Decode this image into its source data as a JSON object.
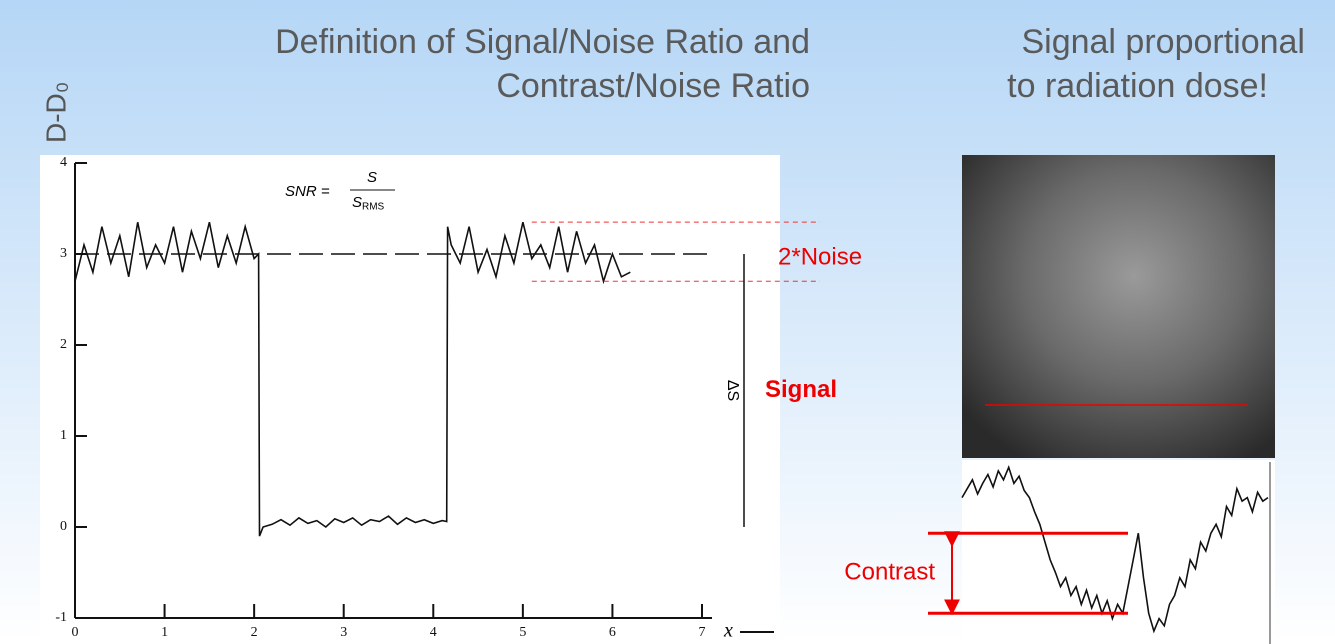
{
  "slide": {
    "title_left": [
      "Definition of Signal/Noise Ratio and",
      "Contrast/Noise Ratio"
    ],
    "title_right": [
      "Signal proportional",
      "to radiation dose!"
    ]
  },
  "chart_data": [
    {
      "type": "line",
      "ylabel": "D-D₀",
      "xlabel": "x",
      "color": "#111111",
      "xlim": [
        0,
        7
      ],
      "ylim": [
        -1,
        4
      ],
      "xticks": [
        0,
        1,
        2,
        3,
        4,
        5,
        6,
        7
      ],
      "yticks": [
        -1,
        0,
        1,
        2,
        3,
        4
      ],
      "x": [
        0,
        0.1,
        0.2,
        0.3,
        0.4,
        0.5,
        0.6,
        0.7,
        0.8,
        0.9,
        1,
        1.1,
        1.2,
        1.3,
        1.4,
        1.5,
        1.6,
        1.7,
        1.8,
        1.9,
        2,
        2.05,
        2.06,
        2.1,
        2.2,
        2.3,
        2.4,
        2.5,
        2.6,
        2.7,
        2.8,
        2.9,
        3,
        3.1,
        3.2,
        3.3,
        3.4,
        3.5,
        3.6,
        3.7,
        3.8,
        3.9,
        4,
        4.1,
        4.15,
        4.16,
        4.2,
        4.3,
        4.4,
        4.5,
        4.6,
        4.7,
        4.8,
        4.9,
        5,
        5.1,
        5.2,
        5.3,
        5.4,
        5.5,
        5.6,
        5.7,
        5.8,
        5.9,
        6,
        6.1,
        6.2
      ],
      "values": [
        2.7,
        3.1,
        2.8,
        3.3,
        2.9,
        3.2,
        2.75,
        3.35,
        2.85,
        3.1,
        2.9,
        3.3,
        2.8,
        3.25,
        2.95,
        3.35,
        2.85,
        3.2,
        2.9,
        3.3,
        2.95,
        3.0,
        -0.1,
        0.0,
        0.03,
        0.08,
        0.02,
        0.1,
        0.04,
        0.07,
        0.0,
        0.09,
        0.05,
        0.1,
        0.02,
        0.08,
        0.06,
        0.12,
        0.03,
        0.1,
        0.05,
        0.08,
        0.04,
        0.07,
        0.06,
        3.3,
        3.1,
        2.9,
        3.3,
        2.8,
        3.05,
        2.75,
        3.2,
        2.9,
        3.35,
        2.95,
        3.1,
        2.85,
        3.3,
        2.8,
        3.25,
        2.9,
        3.1,
        2.7,
        3.0,
        2.75,
        2.8
      ],
      "baseline": 3,
      "noise_band": [
        2.7,
        3.35
      ],
      "formula": {
        "lhs": "SNR =",
        "numerator": "S",
        "denominator": "S",
        "denominator_sub": "RMS"
      },
      "annotations": {
        "noise": "2*Noise",
        "signal": "Signal",
        "delta": "ΔS"
      }
    },
    {
      "type": "line",
      "color": "#111111",
      "ylim": [
        0,
        1
      ],
      "values": [
        0.8,
        0.85,
        0.9,
        0.82,
        0.88,
        0.93,
        0.86,
        0.95,
        0.9,
        0.97,
        0.88,
        0.92,
        0.84,
        0.8,
        0.72,
        0.65,
        0.55,
        0.45,
        0.38,
        0.3,
        0.35,
        0.25,
        0.3,
        0.2,
        0.28,
        0.18,
        0.25,
        0.15,
        0.22,
        0.12,
        0.2,
        0.15,
        0.3,
        0.45,
        0.6,
        0.35,
        0.15,
        0.05,
        0.12,
        0.08,
        0.2,
        0.25,
        0.35,
        0.3,
        0.45,
        0.4,
        0.55,
        0.5,
        0.6,
        0.65,
        0.58,
        0.75,
        0.7,
        0.85,
        0.78,
        0.8,
        0.72,
        0.83,
        0.78,
        0.8
      ],
      "contrast_lines": [
        0.6,
        0.15
      ],
      "annotation": "Contrast"
    }
  ]
}
